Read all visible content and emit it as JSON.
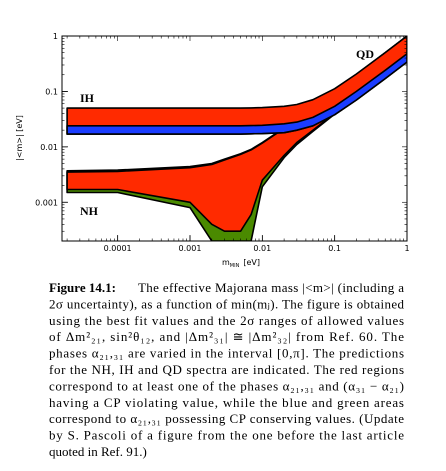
{
  "chart_data": {
    "type": "band",
    "xlabel": "m",
    "xlabel_sub": "MIN",
    "xlabel_unit": "[eV]",
    "ylabel": "|<m>| [eV]",
    "xscale": "log",
    "yscale": "log",
    "xlim": [
      1.7e-05,
      1
    ],
    "ylim": [
      0.0002,
      1
    ],
    "xticks": [
      0.0001,
      0.001,
      0.01,
      0.1,
      1
    ],
    "yticks": [
      0.001,
      0.01,
      0.1,
      1
    ],
    "annotations": [
      "IH",
      "NH",
      "QD"
    ],
    "x": [
      2e-05,
      0.0001,
      0.001,
      0.002,
      0.003,
      0.005,
      0.007,
      0.01,
      0.02,
      0.03,
      0.05,
      0.1,
      0.2,
      0.5,
      1
    ],
    "series": [
      {
        "color": "#4a8a00",
        "lower": [
          0.0015,
          0.0015,
          0.0008,
          0.0002,
          0.0002,
          0.0002,
          0.0002,
          0.0019,
          0.0064,
          0.011,
          0.019,
          0.039,
          0.078,
          0.19,
          0.38
        ],
        "upper": [
          0.0037,
          0.0038,
          0.0044,
          0.005,
          0.006,
          0.0075,
          0.009,
          0.012,
          0.022,
          0.032,
          0.052,
          0.1,
          0.2,
          0.5,
          1
        ]
      },
      {
        "color": "#ff2a00",
        "lower": [
          0.0017,
          0.0017,
          0.001,
          0.0004,
          0.0003,
          0.0003,
          0.0006,
          0.0025,
          0.007,
          0.012,
          0.02,
          0.04,
          0.08,
          0.2,
          0.39
        ],
        "upper": [
          0.0035,
          0.0036,
          0.0042,
          0.0048,
          0.0058,
          0.0073,
          0.0088,
          0.0117,
          0.0215,
          0.031,
          0.051,
          0.099,
          0.198,
          0.497,
          0.99
        ]
      },
      {
        "color": "#ff2a00",
        "lower": [
          0.017,
          0.017,
          0.017,
          0.017,
          0.017,
          0.017,
          0.0172,
          0.0173,
          0.018,
          0.02,
          0.024,
          0.038,
          0.07,
          0.17,
          0.34
        ],
        "upper": [
          0.05,
          0.05,
          0.05,
          0.05,
          0.05,
          0.05,
          0.0505,
          0.051,
          0.054,
          0.058,
          0.071,
          0.112,
          0.206,
          0.502,
          1
        ]
      },
      {
        "color": "#1a3cff",
        "lower": [
          0.017,
          0.017,
          0.017,
          0.017,
          0.017,
          0.017,
          0.0172,
          0.0173,
          0.018,
          0.02,
          0.024,
          0.038,
          0.07,
          0.17,
          0.34
        ],
        "upper": [
          0.024,
          0.024,
          0.024,
          0.024,
          0.024,
          0.024,
          0.0242,
          0.0245,
          0.026,
          0.028,
          0.034,
          0.054,
          0.1,
          0.24,
          0.48
        ]
      }
    ]
  },
  "caption": {
    "label": "Figure 14.1:",
    "lines": [
      "The effective Majorana mass |<m>| (including a",
      "2σ uncertainty), as a function of min(mⱼ). The figure is obtained",
      "using the best fit values and the 2σ ranges of allowed values",
      "of Δm²₂₁, sin²θ₁₂, and |Δm²₃₁| ≅ |Δm²₃₂| from Ref. 60. The",
      "phases α₂₁,₃₁ are varied in the interval [0,π]. The predictions",
      "for the NH, IH and QD spectra are indicated. The red regions",
      "correspond to at least one of the phases α₂₁,₃₁ and (α₃₁ − α₂₁)",
      "having a CP violating value, while the blue and green areas",
      "correspond to α₂₁,₃₁ possessing CP conserving values. (Update",
      "by S. Pascoli of a figure from the one before the last article",
      "quoted in Ref. 91.)"
    ]
  }
}
